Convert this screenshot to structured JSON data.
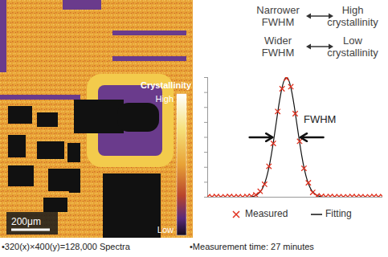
{
  "chart_data": {
    "type": "scatter",
    "header_pairs": [
      {
        "left": [
          "Narrower",
          "FWHM"
        ],
        "right": [
          "High",
          "crystallinity"
        ]
      },
      {
        "left": [
          "Wider",
          "FWHM"
        ],
        "right": [
          "Low",
          "crystallinity"
        ]
      }
    ],
    "fwhm_label": "FWHM",
    "series": [
      {
        "name": "Measured",
        "type": "scatter",
        "marker": "x",
        "color": "#e0301e",
        "x": [
          0,
          2.5,
          5,
          7.5,
          10,
          12.5,
          15,
          17.5,
          20,
          22.5,
          25,
          27.5,
          30,
          32.5,
          35,
          37.5,
          40,
          42.5,
          45,
          47.5,
          50,
          52.5,
          55,
          57.5,
          60,
          62.5,
          65,
          67.5,
          70,
          72.5,
          75,
          77.5,
          80,
          82.5,
          85,
          87.5,
          90,
          92.5,
          95,
          97.5,
          100
        ],
        "values": [
          0.4,
          0.2,
          0.5,
          0.1,
          0.3,
          0.6,
          0.2,
          0.4,
          0.1,
          0.5,
          0.8,
          1.9,
          4.9,
          10.8,
          25.8,
          44.9,
          71.6,
          90.6,
          99.5,
          92.3,
          69.8,
          46.7,
          24.1,
          12.0,
          4.0,
          1.1,
          0.7,
          0.3,
          0.5,
          0.2,
          0.4,
          0.1,
          0.3,
          0.5,
          0.2,
          0.4,
          0.1,
          0.3,
          0.5,
          0.2,
          0.4
        ]
      },
      {
        "name": "Fitting",
        "type": "line",
        "line_style": "solid",
        "color": "#111111",
        "x": [
          0,
          20,
          25,
          27.5,
          30,
          31.25,
          32.5,
          33.75,
          35,
          36.25,
          37.5,
          38.75,
          40,
          41.25,
          42.5,
          43.75,
          45,
          46.25,
          47.5,
          48.75,
          50,
          51.25,
          52.5,
          53.75,
          55,
          56.25,
          57.5,
          58.75,
          60,
          62.5,
          65,
          70,
          100
        ],
        "values": [
          0,
          0,
          0.4,
          1.4,
          4.4,
          7.2,
          11.4,
          17.2,
          24.9,
          34.5,
          45.8,
          58.1,
          70.7,
          82.3,
          91.7,
          97.9,
          100,
          97.9,
          91.7,
          82.3,
          70.7,
          58.1,
          45.8,
          34.5,
          24.9,
          17.2,
          11.4,
          7.2,
          4.4,
          1.4,
          0.4,
          0,
          0
        ]
      }
    ],
    "xlim": [
      0,
      100
    ],
    "xticks": [],
    "ylim": [
      0,
      100
    ],
    "yticks": [
      0,
      12.5,
      25,
      37.5,
      50,
      62.5,
      75,
      87.5,
      100
    ],
    "tick_labels": false,
    "grid": false,
    "legend": "bottom"
  },
  "map": {
    "colorbar": {
      "title": "Crystallinity",
      "high_label": "High",
      "low_label": "Low"
    },
    "scale_bar": "200μm"
  },
  "notes": [
    "•320(x)×400(y)=128,000 Spectra",
    "•Measurement time: 27 minutes"
  ]
}
